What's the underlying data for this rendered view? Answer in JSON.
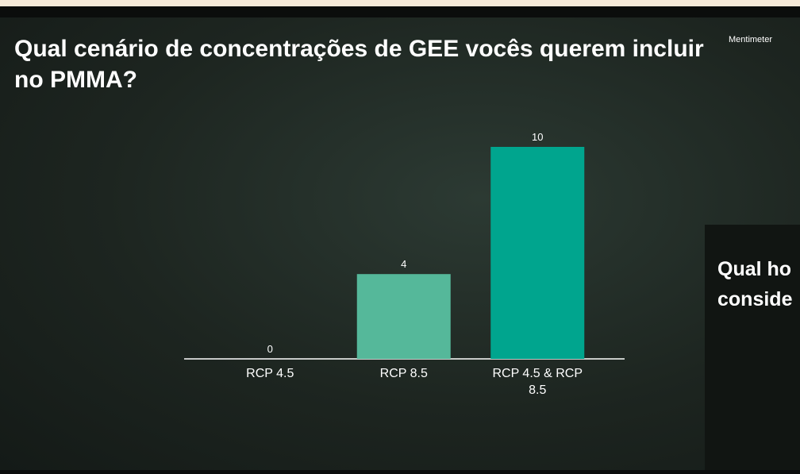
{
  "chart_data": {
    "type": "bar",
    "title": "Qual cenário de concentrações de GEE vocês querem incluir no PMMA?",
    "categories": [
      "RCP 4.5",
      "RCP 8.5",
      "RCP 4.5 & RCP 8.5"
    ],
    "values": [
      0,
      4,
      10
    ],
    "colors": [
      "#55b89a",
      "#55b89a",
      "#00a58e"
    ]
  },
  "brand": "Mentimeter",
  "next_slide": {
    "title_lines": [
      "Qual ho",
      "conside"
    ]
  }
}
